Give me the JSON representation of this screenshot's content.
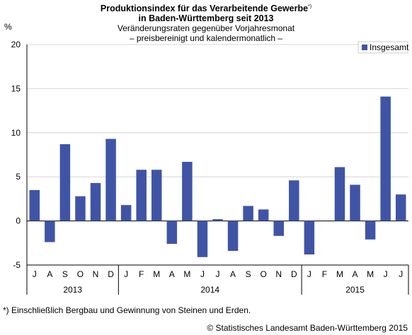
{
  "chart_data": {
    "type": "bar",
    "title_line1": "Produktionsindex für das Verarbeitende Gewerbe",
    "title_marker": "*)",
    "title_line2": "in Baden-Württemberg seit 2013",
    "subtitle_line1": "Veränderungsraten gegenüber Vorjahresmonat",
    "subtitle_line2": "– preisbereinigt und kalendermonatlich –",
    "ylabel": "%",
    "ylim": [
      -5,
      20
    ],
    "yticks": [
      -5,
      0,
      5,
      10,
      15,
      20
    ],
    "grid": true,
    "legend_position": "top-right",
    "categories": [
      "J",
      "A",
      "S",
      "O",
      "N",
      "D",
      "J",
      "F",
      "M",
      "A",
      "M",
      "J",
      "J",
      "A",
      "S",
      "O",
      "N",
      "D",
      "J",
      "F",
      "M",
      "A",
      "M",
      "J",
      "J"
    ],
    "year_groups": [
      {
        "label": "2013",
        "count": 6
      },
      {
        "label": "2014",
        "count": 12
      },
      {
        "label": "2015",
        "count": 7
      }
    ],
    "series": [
      {
        "name": "Insgesamt",
        "color": "#4054a6",
        "values": [
          3.5,
          -2.4,
          8.7,
          2.8,
          4.3,
          9.3,
          1.8,
          5.8,
          5.8,
          -2.6,
          6.7,
          -4.1,
          0.2,
          -3.4,
          1.7,
          1.3,
          -1.7,
          4.6,
          -3.8,
          null,
          6.1,
          4.1,
          -2.1,
          14.1,
          3.0
        ]
      }
    ]
  },
  "footnote": "*) Einschließlich Bergbau und Gewinnung von Steinen und Erden.",
  "copyright": "© Statistisches Landesamt Baden-Württemberg 2015"
}
